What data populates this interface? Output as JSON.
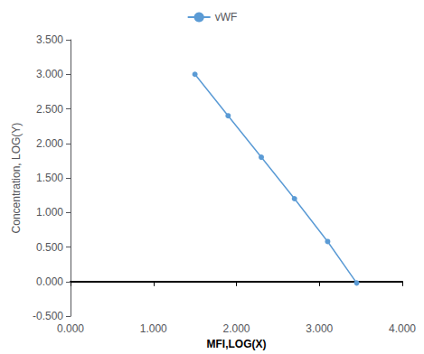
{
  "chart_data": {
    "type": "line",
    "xlabel": "MFI,LOG(X)",
    "ylabel": "Concentration, LOG(Y)",
    "x": [
      1.5,
      1.9,
      2.3,
      2.7,
      3.1,
      3.45
    ],
    "series": [
      {
        "name": "vWF",
        "color": "#5b9bd5",
        "marker": "circle",
        "values": [
          3.0,
          2.4,
          1.8,
          1.2,
          0.58,
          -0.02
        ]
      }
    ],
    "xlim": [
      0.0,
      4.0
    ],
    "ylim": [
      -0.5,
      3.5
    ],
    "xticks": [
      {
        "value": 0,
        "label": "0.000"
      },
      {
        "value": 1,
        "label": "1.000"
      },
      {
        "value": 2,
        "label": "2.000"
      },
      {
        "value": 3,
        "label": "3.000"
      },
      {
        "value": 4,
        "label": "4.000"
      }
    ],
    "yticks": [
      {
        "value": -0.5,
        "label": "-0.500"
      },
      {
        "value": 0,
        "label": "0.000"
      },
      {
        "value": 0.5,
        "label": "0.500"
      },
      {
        "value": 1,
        "label": "1.000"
      },
      {
        "value": 1.5,
        "label": "1.500"
      },
      {
        "value": 2,
        "label": "2.000"
      },
      {
        "value": 2.5,
        "label": "2.500"
      },
      {
        "value": 3,
        "label": "3.000"
      },
      {
        "value": 3.5,
        "label": "3.500"
      }
    ],
    "grid": false,
    "legend": "top"
  }
}
